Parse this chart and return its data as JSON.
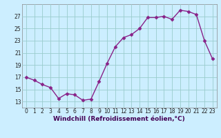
{
  "hours": [
    0,
    1,
    2,
    3,
    4,
    5,
    6,
    7,
    8,
    9,
    10,
    11,
    12,
    13,
    14,
    15,
    16,
    17,
    18,
    19,
    20,
    21,
    22,
    23
  ],
  "values": [
    17.0,
    16.5,
    15.8,
    15.3,
    13.5,
    14.3,
    14.1,
    13.2,
    13.4,
    16.3,
    19.3,
    22.0,
    23.5,
    24.0,
    25.0,
    26.8,
    26.8,
    27.0,
    26.5,
    28.0,
    27.8,
    27.3,
    23.0,
    20.0
  ],
  "line_color": "#882288",
  "bg_color": "#cceeff",
  "grid_color": "#99cccc",
  "xlabel": "Windchill (Refroidissement éolien,°C)",
  "xlabel_color": "#440055",
  "ylim": [
    12,
    29
  ],
  "xlim": [
    -0.5,
    23.5
  ],
  "yticks": [
    13,
    15,
    17,
    19,
    21,
    23,
    25,
    27
  ],
  "xticks": [
    0,
    1,
    2,
    3,
    4,
    5,
    6,
    7,
    8,
    9,
    10,
    11,
    12,
    13,
    14,
    15,
    16,
    17,
    18,
    19,
    20,
    21,
    22,
    23
  ],
  "tick_fontsize": 5.5,
  "xlabel_fontsize": 6.5,
  "marker_size": 2.5,
  "linewidth": 1.0
}
